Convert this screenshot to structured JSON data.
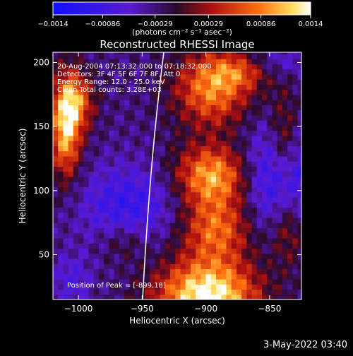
{
  "chart_data": {
    "type": "heatmap",
    "title": "Reconstructed RHESSI Image",
    "xlabel": "Heliocentric X (arcsec)",
    "ylabel": "Heliocentric Y (arcsec)",
    "xlim": [
      -1020,
      -825
    ],
    "ylim": [
      15,
      208
    ],
    "x_ticks": [
      -1000,
      -950,
      -900,
      -850
    ],
    "x_tick_labels": [
      "−1000",
      "−950",
      "−900",
      "−850"
    ],
    "y_ticks": [
      50,
      100,
      150,
      200
    ],
    "y_tick_labels": [
      "50",
      "100",
      "150",
      "200"
    ],
    "colorbar": {
      "range": [
        -0.0014,
        0.0014
      ],
      "ticks": [
        -0.0014,
        -0.00086,
        -0.00029,
        0.00029,
        0.00086,
        0.0014
      ],
      "tick_labels": [
        "−0.0014",
        "−0.00086",
        "−0.00029",
        "0.00029",
        "0.00086",
        "0.0014"
      ],
      "units": "(photons cm⁻² s⁻¹ asec⁻²)"
    },
    "annotations": [
      "20-Aug-2004 07:13:32.000 to 07:18:32.000",
      "Detectors: 3F 4F 5F 6F 7F 8F, Att 0",
      "Energy Range: 12.0 - 25.0 keV",
      "Clean     Total counts: 3.28E+03"
    ],
    "peak_label": "Position of Peak = [-899,18]",
    "peak": {
      "x": -899,
      "y": 18
    }
  },
  "footer_date": "3-May-2022 03:40"
}
